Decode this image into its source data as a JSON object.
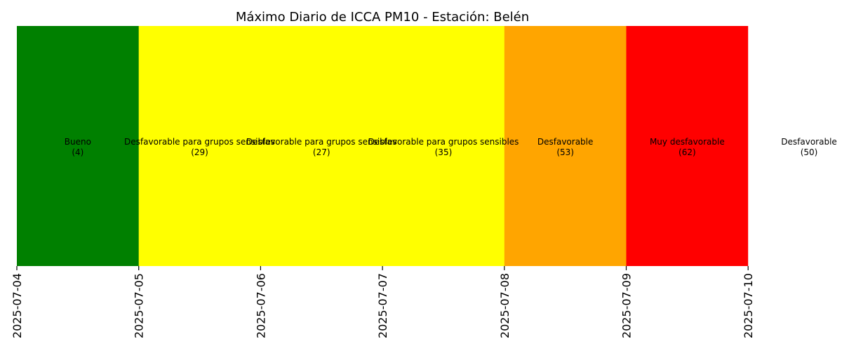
{
  "chart_data": {
    "type": "heatmap",
    "title": "Máximo Diario de ICCA PM10 - Estación: Belén",
    "xlabel": "",
    "ylabel": "",
    "x_tick_labels": [
      "2025-07-04",
      "2025-07-05",
      "2025-07-06",
      "2025-07-07",
      "2025-07-08",
      "2025-07-09",
      "2025-07-10"
    ],
    "cells": [
      {
        "category": "Bueno",
        "value": 4,
        "value_label": "(4)",
        "color": "#008000"
      },
      {
        "category": "Desfavorable para grupos sensibles",
        "value": 29,
        "value_label": "(29)",
        "color": "#ffff00"
      },
      {
        "category": "Desfavorable para grupos sensibles",
        "value": 27,
        "value_label": "(27)",
        "color": "#ffff00"
      },
      {
        "category": "Desfavorable para grupos sensibles",
        "value": 35,
        "value_label": "(35)",
        "color": "#ffff00"
      },
      {
        "category": "Desfavorable",
        "value": 53,
        "value_label": "(53)",
        "color": "#ffa500"
      },
      {
        "category": "Muy desfavorable",
        "value": 62,
        "value_label": "(62)",
        "color": "#ff0000"
      },
      {
        "category": "Desfavorable",
        "value": 50,
        "value_label": "(50)",
        "color": "#ffffff"
      }
    ],
    "grid": false,
    "legend": "none"
  }
}
